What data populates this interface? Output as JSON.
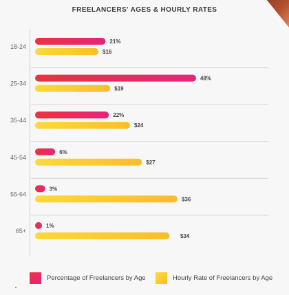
{
  "title": "FREELANCERS' AGES & HOURLY RATES",
  "colors": {
    "pct_start": "#e8343f",
    "pct_end": "#e9237a",
    "rate_start": "#fcd93a",
    "rate_end": "#fbbd2a",
    "gridline": "#d4d4d4",
    "axis_text": "#666666",
    "label_text": "#444444"
  },
  "legend": {
    "percentage": "Percentage of Freelancers by Age",
    "rate": "Hourly Rate of Freelancers by Age"
  },
  "chart_data": {
    "type": "bar",
    "orientation": "horizontal",
    "title": "FREELANCERS' AGES & HOURLY RATES",
    "categories": [
      "18-24",
      "25-34",
      "35-44",
      "45-54",
      "55-64",
      "65+"
    ],
    "series": [
      {
        "name": "Percentage of Freelancers by Age",
        "values": [
          21,
          48,
          22,
          6,
          3,
          1
        ],
        "labels": [
          "21%",
          "48%",
          "22%",
          "6%",
          "3%",
          "1%"
        ]
      },
      {
        "name": "Hourly Rate of Freelancers by Age",
        "values": [
          16,
          19,
          24,
          27,
          36,
          34
        ],
        "labels": [
          "$16",
          "$19",
          "$24",
          "$27",
          "$36",
          "$34"
        ]
      }
    ],
    "grid": true,
    "legend_position": "bottom"
  }
}
